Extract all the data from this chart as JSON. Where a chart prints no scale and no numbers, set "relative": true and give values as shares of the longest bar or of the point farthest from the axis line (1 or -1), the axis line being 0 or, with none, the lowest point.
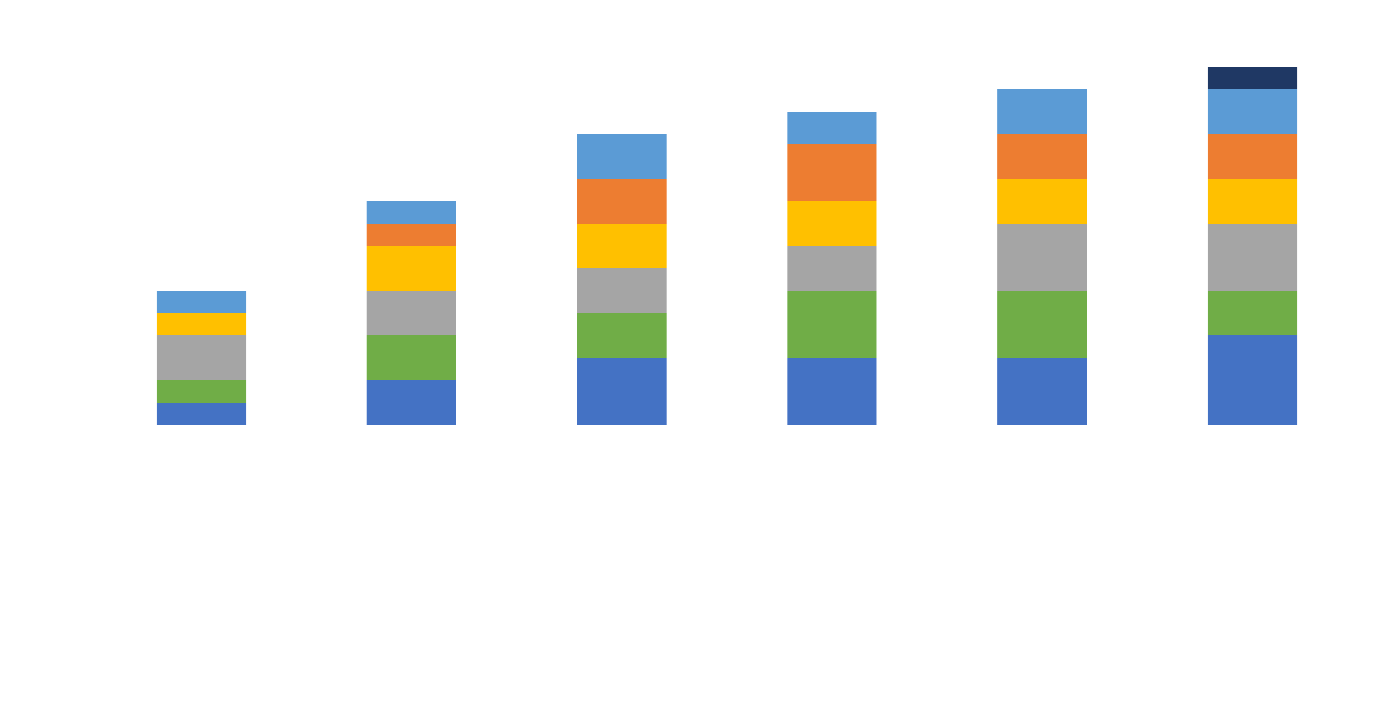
{
  "chart_data": {
    "type": "bar",
    "stacked": true,
    "relative": true,
    "categories": [
      null,
      null,
      null,
      null,
      null,
      null
    ],
    "series": [
      {
        "color": "#4472c4",
        "values": [
          0.0625,
          0.125,
          0.1875,
          0.1875,
          0.1875,
          0.25
        ]
      },
      {
        "color": "#70ad47",
        "values": [
          0.0625,
          0.125,
          0.125,
          0.1875,
          0.1875,
          0.125
        ]
      },
      {
        "color": "#a5a5a5",
        "values": [
          0.125,
          0.125,
          0.125,
          0.125,
          0.1875,
          0.1875
        ]
      },
      {
        "color": "#ffc000",
        "values": [
          0.0625,
          0.125,
          0.125,
          0.125,
          0.125,
          0.125
        ]
      },
      {
        "color": "#ed7d31",
        "values": [
          null,
          0.0625,
          0.125,
          0.16,
          0.125,
          0.125
        ]
      },
      {
        "color": "#5b9bd5",
        "values": [
          0.0625,
          0.0625,
          0.125,
          0.09,
          0.125,
          0.125
        ]
      },
      {
        "color": "#1f3864",
        "values": [
          null,
          null,
          null,
          null,
          null,
          0.0625
        ]
      }
    ]
  }
}
